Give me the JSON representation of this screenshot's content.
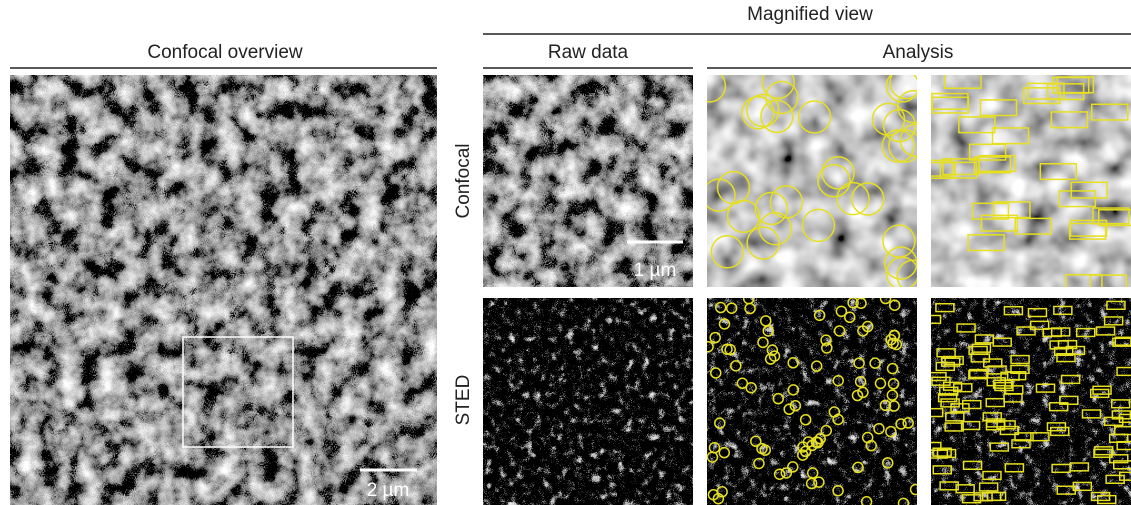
{
  "header": {
    "title": "Magnified view"
  },
  "panels": {
    "overview": {
      "title": "Confocal overview",
      "scale_bar": "2 µm"
    },
    "raw": {
      "title": "Raw data",
      "scale_bar": "1 µm"
    },
    "analysis": {
      "title": "Analysis"
    }
  },
  "rows": [
    "Confocal",
    "STED"
  ]
}
